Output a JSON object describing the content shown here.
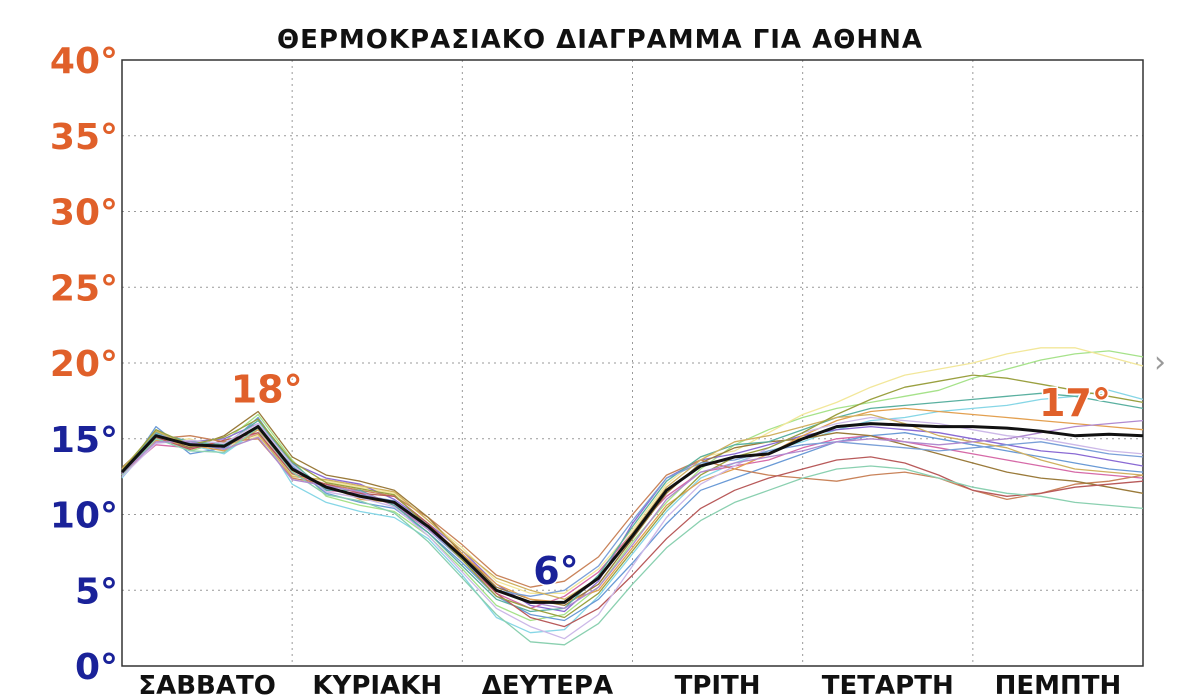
{
  "chart_data": {
    "type": "line",
    "title": "ΘΕΡΜΟΚΡΑΣΙΑΚΟ ΔΙΑΓΡΑΜΜΑ ΓΙΑ ΑΘΗΝΑ",
    "xlabel": "",
    "ylabel": "",
    "ylim": [
      0,
      40
    ],
    "xlim": [
      0,
      6
    ],
    "grid": true,
    "legend": "none",
    "y_ticks": [
      {
        "label": "40°",
        "value": 40,
        "color": "#e0602a"
      },
      {
        "label": "35°",
        "value": 35,
        "color": "#e0602a"
      },
      {
        "label": "30°",
        "value": 30,
        "color": "#e0602a"
      },
      {
        "label": "25°",
        "value": 25,
        "color": "#e0602a"
      },
      {
        "label": "20°",
        "value": 20,
        "color": "#e0602a"
      },
      {
        "label": "15°",
        "value": 15,
        "color": "#1a2299"
      },
      {
        "label": "10°",
        "value": 10,
        "color": "#1a2299"
      },
      {
        "label": "5°",
        "value": 5,
        "color": "#1a2299"
      },
      {
        "label": "0°",
        "value": 0,
        "color": "#1a2299"
      }
    ],
    "x_ticks": [
      {
        "label": "ΣΑΒΒΑΤΟ",
        "value": 0.5
      },
      {
        "label": "ΚΥΡΙΑΚΗ",
        "value": 1.5
      },
      {
        "label": "ΔΕΥΤΕΡΑ",
        "value": 2.5
      },
      {
        "label": "ΤΡΙΤΗ",
        "value": 3.5
      },
      {
        "label": "ΤΕΤΑΡΤΗ",
        "value": 4.5
      },
      {
        "label": "ΠΕΜΠΤΗ",
        "value": 5.5
      }
    ],
    "x": [
      0,
      0.2,
      0.4,
      0.6,
      0.8,
      1.0,
      1.2,
      1.4,
      1.6,
      1.8,
      2.0,
      2.2,
      2.4,
      2.6,
      2.8,
      3.0,
      3.2,
      3.4,
      3.6,
      3.8,
      4.0,
      4.2,
      4.4,
      4.6,
      4.8,
      5.0,
      5.2,
      5.4,
      5.6,
      5.8,
      6.0
    ],
    "mean": {
      "values": [
        12.8,
        15.2,
        14.6,
        14.5,
        15.8,
        13.0,
        11.8,
        11.2,
        10.8,
        9.2,
        7.2,
        5.0,
        4.2,
        4.2,
        5.8,
        8.6,
        11.6,
        13.2,
        13.8,
        14.0,
        15.0,
        15.8,
        16.0,
        15.9,
        15.8,
        15.8,
        15.7,
        15.5,
        15.2,
        15.3,
        15.2
      ],
      "color": "#111111"
    },
    "series": [
      {
        "values": [
          12.6,
          15.6,
          14.2,
          14.8,
          16.6,
          13.6,
          11.2,
          10.6,
          10.2,
          8.6,
          6.4,
          4.0,
          3.0,
          3.4,
          5.2,
          8.2,
          10.8,
          13.0,
          14.6,
          15.6,
          16.4,
          17.0,
          17.4,
          17.8,
          18.2,
          19.0,
          19.6,
          20.2,
          20.6,
          20.8,
          20.4
        ],
        "color": "#a6e28a"
      },
      {
        "values": [
          12.9,
          14.8,
          15.0,
          14.2,
          15.2,
          12.6,
          12.2,
          11.8,
          11.4,
          9.6,
          7.8,
          5.6,
          4.8,
          4.8,
          6.4,
          9.0,
          12.0,
          13.8,
          14.2,
          15.4,
          16.6,
          17.4,
          18.4,
          19.2,
          19.6,
          20.0,
          20.6,
          21.0,
          21.0,
          20.4,
          19.8
        ],
        "color": "#f2e79a"
      },
      {
        "values": [
          12.4,
          15.0,
          14.6,
          14.0,
          15.6,
          12.0,
          10.8,
          10.2,
          9.8,
          8.4,
          6.0,
          3.2,
          2.2,
          2.4,
          4.6,
          7.4,
          10.2,
          12.4,
          13.4,
          14.2,
          14.8,
          15.6,
          16.2,
          16.4,
          16.8,
          17.0,
          17.2,
          17.6,
          17.8,
          18.2,
          17.6
        ],
        "color": "#86d6e6"
      },
      {
        "values": [
          13.0,
          15.4,
          14.8,
          15.0,
          16.0,
          13.4,
          12.4,
          12.0,
          11.0,
          9.4,
          7.6,
          5.4,
          4.0,
          3.6,
          5.6,
          9.4,
          12.4,
          13.6,
          14.0,
          14.6,
          15.2,
          15.6,
          15.8,
          15.6,
          15.4,
          15.0,
          14.6,
          14.2,
          14.0,
          13.6,
          13.2
        ],
        "color": "#8a6ad4"
      },
      {
        "values": [
          12.7,
          14.6,
          14.4,
          14.6,
          15.4,
          12.8,
          11.6,
          11.4,
          10.6,
          9.0,
          7.0,
          4.8,
          3.8,
          4.6,
          6.2,
          8.8,
          11.2,
          12.8,
          13.2,
          13.6,
          14.4,
          15.0,
          15.2,
          14.8,
          14.4,
          14.0,
          13.6,
          13.2,
          12.8,
          12.6,
          12.4
        ],
        "color": "#d66aa8"
      },
      {
        "values": [
          12.5,
          15.8,
          14.0,
          14.4,
          16.4,
          13.2,
          11.4,
          10.8,
          10.4,
          8.8,
          6.8,
          4.6,
          3.4,
          3.0,
          4.4,
          6.8,
          9.4,
          11.6,
          12.4,
          13.2,
          14.0,
          14.8,
          15.2,
          15.4,
          15.0,
          14.6,
          14.2,
          13.8,
          13.4,
          13.0,
          12.8
        ],
        "color": "#6a9ad6"
      },
      {
        "values": [
          12.8,
          15.0,
          15.2,
          14.8,
          15.0,
          12.4,
          12.0,
          11.6,
          11.2,
          9.8,
          8.0,
          6.0,
          5.2,
          5.6,
          7.2,
          10.0,
          12.6,
          13.6,
          13.0,
          12.6,
          12.4,
          12.2,
          12.6,
          12.8,
          12.4,
          11.6,
          11.0,
          11.4,
          12.0,
          12.2,
          12.6
        ],
        "color": "#c9835a"
      },
      {
        "values": [
          13.1,
          15.2,
          14.4,
          15.2,
          16.8,
          13.8,
          12.6,
          12.2,
          11.6,
          9.8,
          7.4,
          5.2,
          4.4,
          4.0,
          5.4,
          8.4,
          11.4,
          13.4,
          14.4,
          14.8,
          15.0,
          15.4,
          15.2,
          14.6,
          14.0,
          13.4,
          12.8,
          12.4,
          12.2,
          11.8,
          11.4
        ],
        "color": "#9a7a3a"
      },
      {
        "values": [
          12.6,
          14.9,
          14.6,
          14.2,
          15.6,
          12.9,
          11.9,
          11.0,
          10.8,
          9.2,
          7.4,
          5.4,
          4.4,
          4.2,
          5.0,
          7.8,
          10.6,
          12.2,
          13.0,
          14.0,
          15.2,
          16.2,
          16.8,
          17.0,
          16.8,
          16.6,
          16.4,
          16.2,
          16.0,
          15.8,
          15.6
        ],
        "color": "#e3a050"
      },
      {
        "values": [
          12.9,
          15.4,
          14.8,
          14.6,
          16.2,
          13.4,
          11.6,
          11.6,
          10.6,
          8.8,
          6.6,
          4.4,
          3.6,
          3.8,
          6.0,
          9.2,
          12.2,
          13.8,
          14.6,
          14.8,
          15.6,
          16.4,
          17.0,
          17.2,
          17.4,
          17.6,
          17.8,
          18.0,
          17.8,
          17.4,
          17.0
        ],
        "color": "#5ab0a0"
      },
      {
        "values": [
          12.7,
          15.1,
          14.3,
          14.9,
          15.4,
          12.7,
          12.0,
          11.4,
          11.2,
          9.4,
          7.2,
          4.8,
          3.2,
          2.6,
          3.8,
          6.0,
          8.4,
          10.4,
          11.6,
          12.4,
          13.0,
          13.6,
          13.8,
          13.4,
          12.6,
          11.6,
          11.2,
          11.4,
          11.8,
          12.0,
          12.2
        ],
        "color": "#b85a5a"
      },
      {
        "values": [
          12.8,
          15.3,
          14.7,
          14.3,
          15.9,
          13.1,
          11.7,
          11.3,
          10.9,
          9.0,
          7.0,
          5.0,
          4.6,
          5.0,
          6.6,
          9.6,
          12.4,
          13.4,
          13.6,
          14.2,
          14.6,
          14.8,
          14.6,
          14.4,
          14.2,
          14.4,
          14.6,
          14.8,
          14.4,
          14.0,
          13.8
        ],
        "color": "#7aa0d8"
      },
      {
        "values": [
          12.5,
          14.7,
          14.9,
          14.7,
          16.0,
          13.3,
          11.5,
          11.1,
          10.5,
          8.6,
          6.2,
          3.8,
          2.6,
          1.8,
          3.4,
          6.6,
          9.8,
          12.0,
          13.2,
          14.4,
          15.4,
          16.0,
          16.4,
          16.2,
          16.0,
          15.6,
          15.2,
          15.0,
          14.6,
          14.2,
          14.0
        ],
        "color": "#ccb8e8"
      },
      {
        "values": [
          13.0,
          15.5,
          14.5,
          14.5,
          15.3,
          12.5,
          12.3,
          11.9,
          11.5,
          9.6,
          7.6,
          5.8,
          5.0,
          4.4,
          5.8,
          8.8,
          11.8,
          13.6,
          14.8,
          15.2,
          15.8,
          16.4,
          16.6,
          16.0,
          15.2,
          14.8,
          14.4,
          13.6,
          13.0,
          12.8,
          12.6
        ],
        "color": "#d0b060"
      },
      {
        "values": [
          12.6,
          15.0,
          14.2,
          14.1,
          15.7,
          12.8,
          11.3,
          10.9,
          10.1,
          8.2,
          5.8,
          3.4,
          1.6,
          1.4,
          2.8,
          5.4,
          7.8,
          9.6,
          10.8,
          11.6,
          12.4,
          13.0,
          13.2,
          13.0,
          12.4,
          11.8,
          11.4,
          11.2,
          10.8,
          10.6,
          10.4
        ],
        "color": "#8ad0b0"
      },
      {
        "values": [
          12.9,
          15.6,
          14.6,
          15.1,
          16.3,
          13.5,
          12.1,
          11.7,
          11.3,
          9.2,
          7.0,
          4.6,
          3.8,
          3.2,
          4.8,
          7.6,
          10.4,
          12.6,
          13.8,
          14.4,
          15.4,
          16.6,
          17.6,
          18.4,
          18.8,
          19.2,
          19.0,
          18.6,
          18.2,
          17.8,
          17.4
        ],
        "color": "#9aa040"
      },
      {
        "values": [
          12.7,
          14.8,
          14.8,
          14.3,
          15.1,
          12.3,
          11.9,
          11.5,
          10.7,
          9.0,
          7.2,
          5.0,
          4.2,
          3.8,
          5.2,
          8.0,
          11.0,
          12.8,
          13.4,
          13.8,
          14.2,
          14.8,
          15.0,
          14.8,
          14.6,
          14.8,
          15.0,
          15.4,
          15.8,
          16.0,
          16.2
        ],
        "color": "#b08ad0"
      }
    ],
    "annotations": [
      {
        "text": "18°",
        "x": 0.85,
        "y": 17.4,
        "color": "#e0602a"
      },
      {
        "text": "6°",
        "x": 2.55,
        "y": 5.4,
        "color": "#1a2299"
      },
      {
        "text": "17°",
        "x": 5.6,
        "y": 16.5,
        "color": "#e0602a"
      }
    ]
  },
  "ui": {
    "next_chevron": "›"
  }
}
